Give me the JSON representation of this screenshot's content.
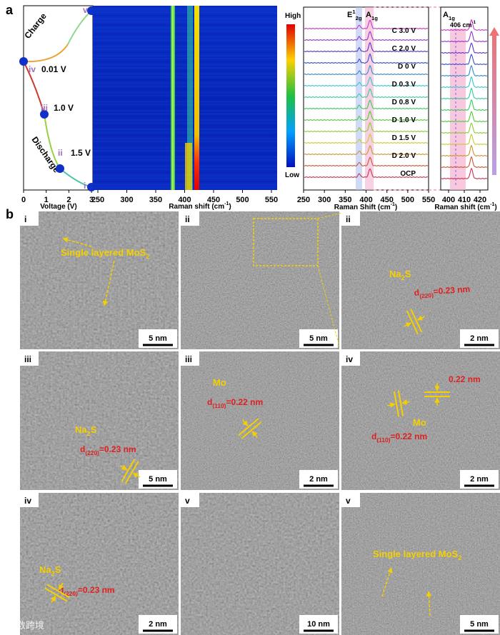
{
  "panel_a": {
    "label": "a",
    "voltage_plot": {
      "x_label": "Voltage (V)",
      "x_ticks": [
        "0",
        "1",
        "2",
        "3"
      ],
      "charge": "Charge",
      "discharge": "Discharge",
      "states": [
        {
          "roman": "v"
        },
        {
          "roman": "iv",
          "voltage": "0.01 V"
        },
        {
          "roman": "iii",
          "voltage": "1.0 V"
        },
        {
          "roman": "ii",
          "voltage": "1.5 V"
        },
        {
          "roman": "i"
        }
      ]
    },
    "heatmap": {
      "x_label": {
        "text": "Raman shift (cm",
        "sup": "-1",
        "tail": ")"
      },
      "x_ticks": [
        "250",
        "300",
        "350",
        "400",
        "450",
        "500",
        "550"
      ],
      "colorbar_high": "High",
      "colorbar_low": "Low"
    },
    "spectra": {
      "peak_labels": [
        {
          "text": "E",
          "sup": "1",
          "sub": "2g"
        },
        {
          "text": "A",
          "sub": "1g"
        }
      ],
      "trace_labels": [
        "C 3.0 V",
        "C 2.0 V",
        "D 0 V",
        "D 0.3 V",
        "D 0.8 V",
        "D 1.0 V",
        "D 1.5 V",
        "D 2.0 V",
        "OCP"
      ],
      "x_ticks": [
        "250",
        "300",
        "350",
        "400",
        "450",
        "500",
        "550"
      ],
      "x_label": {
        "text": "Raman Shift (cm",
        "sup": "-1",
        "tail": ")"
      }
    },
    "zoom": {
      "peak_label": {
        "text": "A",
        "sub": "1g"
      },
      "peak_position": {
        "text": "406 cm",
        "sup": "-1"
      },
      "x_ticks": [
        "400",
        "410",
        "420"
      ],
      "x_label": {
        "text": "Raman shift (cm",
        "sup": "-1",
        "tail": ")"
      }
    }
  },
  "panel_b": {
    "label": "b",
    "images": [
      {
        "roman": "i",
        "scale": "5 nm",
        "annotations": [
          {
            "text": "Single layered MoS",
            "sub": "2"
          }
        ]
      },
      {
        "roman": "ii",
        "scale": "5 nm",
        "annotations": []
      },
      {
        "roman": "ii",
        "scale": "2 nm",
        "annotations": [
          {
            "text": "Na",
            "sub": "2",
            "tail": "S"
          },
          {
            "text": "d",
            "sub": "(220)",
            "tail": "=0.23 nm"
          }
        ]
      },
      {
        "roman": "iii",
        "scale": "5 nm",
        "annotations": [
          {
            "text": "Na",
            "sub": "2",
            "tail": "S"
          },
          {
            "text": "d",
            "sub": "(220)",
            "tail": "=0.23 nm"
          }
        ]
      },
      {
        "roman": "iii",
        "scale": "2 nm",
        "annotations": [
          {
            "text": "Mo"
          },
          {
            "text": "d",
            "sub": "(110)",
            "tail": "=0.22 nm"
          }
        ]
      },
      {
        "roman": "iv",
        "scale": "2 nm",
        "annotations": [
          {
            "text": "0.22 nm"
          },
          {
            "text": "Mo"
          },
          {
            "text": "d",
            "sub": "(110)",
            "tail": "=0.22 nm"
          }
        ]
      },
      {
        "roman": "iv",
        "scale": "2 nm",
        "annotations": [
          {
            "text": "Na",
            "sub": "2",
            "tail": "S"
          },
          {
            "text": "d",
            "sub": "(220)",
            "tail": "=0.23 nm"
          }
        ]
      },
      {
        "roman": "v",
        "scale": "10 nm",
        "annotations": []
      },
      {
        "roman": "v",
        "scale": "5 nm",
        "annotations": [
          {
            "text": "Single layered MoS",
            "sub": "2"
          }
        ]
      }
    ]
  },
  "watermark": "大数跨境"
}
